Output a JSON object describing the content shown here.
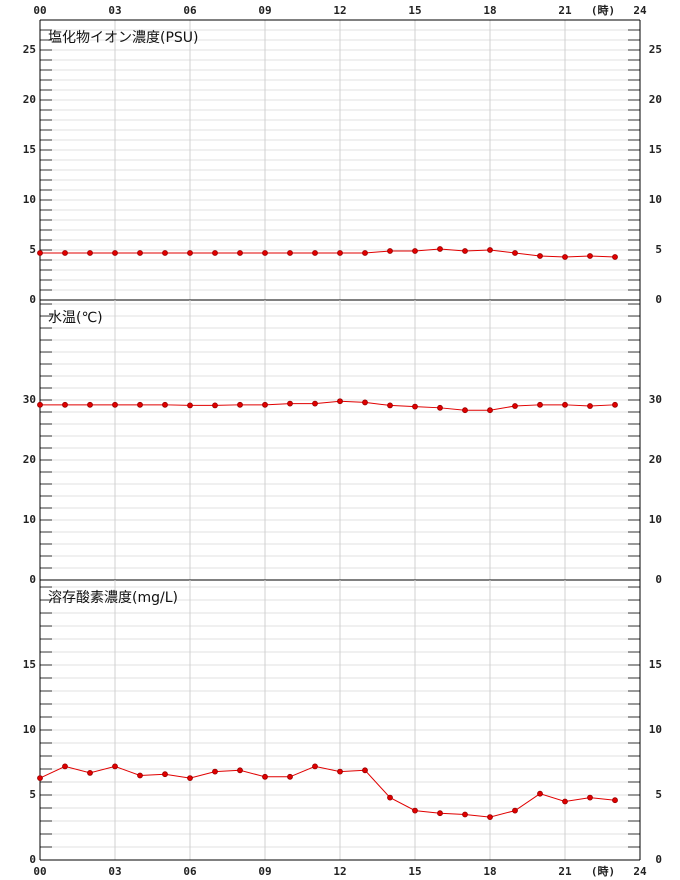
{
  "chart_data": [
    {
      "type": "line",
      "title": "塩化物イオン濃度(PSU)",
      "x_label": "(時)",
      "xlim": [
        0,
        24
      ],
      "xticks": [
        {
          "value": 0,
          "label": "00"
        },
        {
          "value": 3,
          "label": "03"
        },
        {
          "value": 6,
          "label": "06"
        },
        {
          "value": 9,
          "label": "09"
        },
        12,
        15,
        18,
        21,
        24
      ],
      "ylim": [
        0,
        28
      ],
      "yticks": [
        0,
        5,
        10,
        15,
        20,
        25
      ],
      "ygrid_step": 1,
      "grid": true,
      "color": "#e00000",
      "x": [
        0,
        1,
        2,
        3,
        4,
        5,
        6,
        7,
        8,
        9,
        10,
        11,
        12,
        13,
        14,
        15,
        16,
        17,
        18,
        19,
        20,
        21,
        22,
        23
      ],
      "values": [
        4.7,
        4.7,
        4.7,
        4.7,
        4.7,
        4.7,
        4.7,
        4.7,
        4.7,
        4.7,
        4.7,
        4.7,
        4.7,
        4.7,
        4.9,
        4.9,
        5.1,
        4.9,
        5.0,
        4.7,
        4.4,
        4.3,
        4.4,
        4.3
      ]
    },
    {
      "type": "line",
      "title": "水温(℃)",
      "xlim": [
        0,
        24
      ],
      "xticks": [
        0,
        3,
        6,
        9,
        12,
        15,
        18,
        21,
        24
      ],
      "ylim": [
        0,
        46.67
      ],
      "yticks": [
        0,
        10,
        20,
        30
      ],
      "ygrid_step": 2,
      "grid": true,
      "color": "#e00000",
      "x": [
        0,
        1,
        2,
        3,
        4,
        5,
        6,
        7,
        8,
        9,
        10,
        11,
        12,
        13,
        14,
        15,
        16,
        17,
        18,
        19,
        20,
        21,
        22,
        23
      ],
      "values": [
        29.2,
        29.2,
        29.2,
        29.2,
        29.2,
        29.2,
        29.1,
        29.1,
        29.2,
        29.2,
        29.4,
        29.4,
        29.8,
        29.6,
        29.1,
        28.9,
        28.7,
        28.3,
        28.3,
        29.0,
        29.2,
        29.2,
        29.0,
        29.2
      ]
    },
    {
      "type": "line",
      "title": "溶存酸素濃度(mg/L)",
      "x_label": "(時)",
      "xlim": [
        0,
        24
      ],
      "xticks": [
        {
          "value": 0,
          "label": "00"
        },
        {
          "value": 3,
          "label": "03"
        },
        {
          "value": 6,
          "label": "06"
        },
        {
          "value": 9,
          "label": "09"
        },
        12,
        15,
        18,
        21,
        24
      ],
      "ylim": [
        0,
        21.54
      ],
      "yticks": [
        0,
        5,
        10,
        15
      ],
      "ygrid_step": 1,
      "grid": true,
      "color": "#e00000",
      "x": [
        0,
        1,
        2,
        3,
        4,
        5,
        6,
        7,
        8,
        9,
        10,
        11,
        12,
        13,
        14,
        15,
        16,
        17,
        18,
        19,
        20,
        21,
        22,
        23
      ],
      "values": [
        6.3,
        7.2,
        6.7,
        7.2,
        6.5,
        6.6,
        6.3,
        6.8,
        6.9,
        6.4,
        6.4,
        7.2,
        6.8,
        6.9,
        4.8,
        3.8,
        3.6,
        3.5,
        3.3,
        3.8,
        5.1,
        4.5,
        4.8,
        4.6
      ]
    }
  ]
}
